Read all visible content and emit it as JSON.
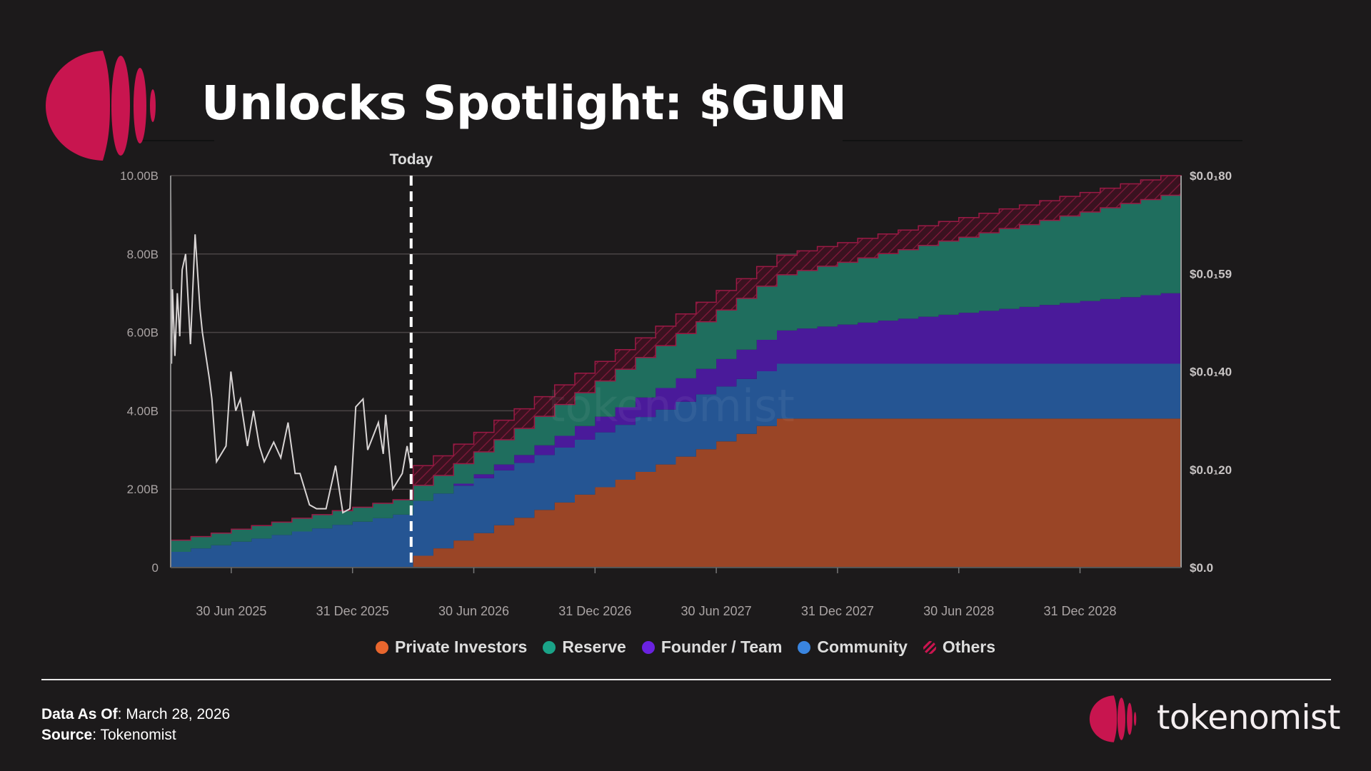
{
  "header": {
    "title": "Unlocks Spotlight: $GUN"
  },
  "footer": {
    "data_as_of_label": "Data As Of",
    "data_as_of_value": ": March 28,  2026",
    "source_label": "Source",
    "source_value": ": Tokenomist",
    "brand": "tokenomist"
  },
  "colors": {
    "background": "#1c1a1b",
    "brand": "#c8154f"
  },
  "chart_data": {
    "type": "area",
    "title": "",
    "watermark": "tokenomist",
    "today_label": "Today",
    "today_month": 11.9,
    "x_unit": "months since Apr 2025",
    "x_range": [
      0,
      50
    ],
    "xlabel": "",
    "ylabel": "",
    "ylim": [
      0,
      10
    ],
    "y_ticks": [
      {
        "value": 0,
        "label": "0"
      },
      {
        "value": 2,
        "label": "2.00B"
      },
      {
        "value": 4,
        "label": "4.00B"
      },
      {
        "value": 6,
        "label": "6.00B"
      },
      {
        "value": 8,
        "label": "8.00B"
      },
      {
        "value": 10,
        "label": "10.00B"
      }
    ],
    "y2_ticks": [
      "$0.0",
      "$0.0₁20",
      "$0.0₁40",
      "$0.0₁59",
      "$0.0₁80"
    ],
    "x_ticks": [
      {
        "month": 3,
        "label": "30 Jun 2025"
      },
      {
        "month": 9,
        "label": "31 Dec 2025"
      },
      {
        "month": 15,
        "label": "30 Jun 2026"
      },
      {
        "month": 21,
        "label": "31 Dec 2026"
      },
      {
        "month": 27,
        "label": "30 Jun 2027"
      },
      {
        "month": 33,
        "label": "31 Dec 2027"
      },
      {
        "month": 39,
        "label": "30 Jun 2028"
      },
      {
        "month": 45,
        "label": "31 Dec 2028"
      }
    ],
    "grid": true,
    "legend_position": "bottom",
    "series": [
      {
        "name": "Private Investors",
        "color": "#9a4526",
        "legend_color": "#e8662e",
        "values": [
          0,
          0,
          0,
          0,
          0,
          0,
          0,
          0,
          0,
          0,
          0,
          0,
          0.3,
          0.49,
          0.69,
          0.88,
          1.08,
          1.27,
          1.47,
          1.66,
          1.86,
          2.05,
          2.24,
          2.44,
          2.63,
          2.83,
          3.02,
          3.22,
          3.41,
          3.61,
          3.8,
          3.8,
          3.8,
          3.8,
          3.8,
          3.8,
          3.8,
          3.8,
          3.8,
          3.8,
          3.8,
          3.8,
          3.8,
          3.8,
          3.8,
          3.8,
          3.8,
          3.8,
          3.8,
          3.8
        ]
      },
      {
        "name": "Community",
        "color": "#255593",
        "legend_color": "#3a85e0",
        "values": [
          0.4,
          0.49,
          0.57,
          0.66,
          0.74,
          0.83,
          0.92,
          1.0,
          1.09,
          1.17,
          1.26,
          1.35,
          1.4,
          1.4,
          1.4,
          1.4,
          1.4,
          1.4,
          1.4,
          1.4,
          1.4,
          1.4,
          1.4,
          1.4,
          1.4,
          1.4,
          1.4,
          1.4,
          1.4,
          1.4,
          1.4,
          1.4,
          1.4,
          1.4,
          1.4,
          1.4,
          1.4,
          1.4,
          1.4,
          1.4,
          1.4,
          1.4,
          1.4,
          1.4,
          1.4,
          1.4,
          1.4,
          1.4,
          1.4,
          1.4
        ]
      },
      {
        "name": "Founder / Team",
        "color": "#4a1a9a",
        "legend_color": "#6a22e0",
        "values": [
          0,
          0,
          0,
          0,
          0,
          0,
          0,
          0,
          0,
          0,
          0,
          0,
          0,
          0,
          0.05,
          0.1,
          0.15,
          0.2,
          0.25,
          0.3,
          0.35,
          0.4,
          0.45,
          0.5,
          0.55,
          0.6,
          0.65,
          0.7,
          0.75,
          0.8,
          0.85,
          0.9,
          0.95,
          1.0,
          1.05,
          1.1,
          1.15,
          1.2,
          1.25,
          1.3,
          1.35,
          1.4,
          1.45,
          1.5,
          1.55,
          1.6,
          1.65,
          1.7,
          1.75,
          1.8
        ]
      },
      {
        "name": "Reserve",
        "color": "#1f6e5e",
        "legend_color": "#1aa388",
        "values": [
          0.3,
          0.3,
          0.31,
          0.32,
          0.33,
          0.33,
          0.34,
          0.35,
          0.36,
          0.37,
          0.38,
          0.38,
          0.4,
          0.46,
          0.51,
          0.57,
          0.63,
          0.68,
          0.74,
          0.8,
          0.85,
          0.91,
          0.97,
          1.02,
          1.08,
          1.14,
          1.2,
          1.25,
          1.31,
          1.37,
          1.42,
          1.48,
          1.54,
          1.59,
          1.65,
          1.71,
          1.76,
          1.82,
          1.88,
          1.93,
          1.99,
          2.05,
          2.1,
          2.16,
          2.22,
          2.27,
          2.33,
          2.39,
          2.44,
          2.5
        ]
      },
      {
        "name": "Others",
        "color": "#3a1220",
        "legend_color": "#c8154f",
        "hatched": true,
        "values": [
          0,
          0,
          0,
          0,
          0,
          0,
          0,
          0,
          0,
          0,
          0,
          0,
          0.5,
          0.5,
          0.5,
          0.5,
          0.5,
          0.5,
          0.5,
          0.5,
          0.5,
          0.5,
          0.5,
          0.5,
          0.5,
          0.5,
          0.5,
          0.5,
          0.5,
          0.5,
          0.5,
          0.5,
          0.5,
          0.5,
          0.5,
          0.5,
          0.5,
          0.5,
          0.5,
          0.5,
          0.5,
          0.5,
          0.5,
          0.5,
          0.5,
          0.5,
          0.5,
          0.5,
          0.5,
          0.5
        ]
      }
    ],
    "legend_order": [
      "Private Investors",
      "Reserve",
      "Founder / Team",
      "Community",
      "Others"
    ],
    "price_line": {
      "name": "Price",
      "color": "#d8d4d4",
      "scale_note": "plotted against left axis units",
      "points": [
        [
          0.0,
          9.7
        ],
        [
          0.04,
          5.2
        ],
        [
          0.09,
          7.1
        ],
        [
          0.21,
          5.4
        ],
        [
          0.33,
          7.0
        ],
        [
          0.45,
          5.9
        ],
        [
          0.57,
          7.6
        ],
        [
          0.74,
          8.0
        ],
        [
          0.98,
          5.7
        ],
        [
          1.21,
          8.5
        ],
        [
          1.45,
          6.6
        ],
        [
          1.57,
          6.0
        ],
        [
          1.92,
          4.8
        ],
        [
          2.04,
          4.3
        ],
        [
          2.27,
          2.7
        ],
        [
          2.74,
          3.1
        ],
        [
          2.98,
          5.0
        ],
        [
          3.22,
          4.0
        ],
        [
          3.45,
          4.3
        ],
        [
          3.8,
          3.1
        ],
        [
          4.1,
          4.0
        ],
        [
          4.39,
          3.1
        ],
        [
          4.63,
          2.7
        ],
        [
          5.1,
          3.2
        ],
        [
          5.45,
          2.8
        ],
        [
          5.81,
          3.7
        ],
        [
          6.16,
          2.4
        ],
        [
          6.4,
          2.4
        ],
        [
          6.87,
          1.6
        ],
        [
          7.22,
          1.5
        ],
        [
          7.69,
          1.5
        ],
        [
          8.16,
          2.6
        ],
        [
          8.52,
          1.4
        ],
        [
          8.87,
          1.5
        ],
        [
          9.16,
          4.1
        ],
        [
          9.52,
          4.3
        ],
        [
          9.75,
          3.0
        ],
        [
          10.28,
          3.7
        ],
        [
          10.52,
          2.9
        ],
        [
          10.64,
          3.9
        ],
        [
          10.99,
          2.0
        ],
        [
          11.46,
          2.4
        ],
        [
          11.7,
          3.1
        ],
        [
          11.87,
          2.6
        ]
      ]
    }
  }
}
